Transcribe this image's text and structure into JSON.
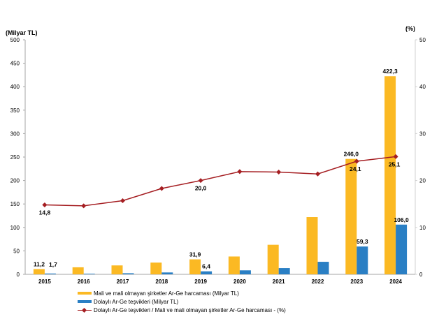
{
  "chart_data": {
    "type": "bar",
    "title": "",
    "categories": [
      "2015",
      "2016",
      "2017",
      "2018",
      "2019",
      "2020",
      "2021",
      "2022",
      "2023",
      "2024"
    ],
    "y_left": {
      "label": "(Milyar TL)",
      "ylim": [
        0,
        500
      ],
      "ticks": [
        "0",
        "50",
        "100",
        "150",
        "200",
        "250",
        "300",
        "350",
        "400",
        "450",
        "500"
      ]
    },
    "y_right": {
      "label": "(%)",
      "ylim": [
        0,
        50
      ],
      "ticks": [
        "0",
        "10",
        "20",
        "30",
        "40",
        "50"
      ]
    },
    "grid": false,
    "legend_position": "bottom",
    "series": [
      {
        "name": "Mali ve mali olmayan şirketler Ar-Ge harcaması (Milyar TL)",
        "type": "bar",
        "axis": "left",
        "color": "#fbb923",
        "values": [
          11.2,
          15.0,
          19.0,
          25.0,
          31.9,
          38.0,
          63.0,
          122.0,
          246.0,
          422.3
        ],
        "labels": [
          "11,2",
          "",
          "",
          "",
          "31,9",
          "",
          "",
          "",
          "246,0",
          "422,3"
        ]
      },
      {
        "name": "Dolaylı Ar-Ge teşvikleri (Milyar TL)",
        "type": "bar",
        "axis": "left",
        "color": "#2a7fc4",
        "values": [
          1.7,
          1.3,
          2.3,
          4.0,
          6.4,
          8.5,
          13.3,
          26.7,
          59.3,
          106.0
        ],
        "labels": [
          "1,7",
          "",
          "",
          "",
          "6,4",
          "",
          "",
          "",
          "59,3",
          "106,0"
        ]
      },
      {
        "name": "Dolaylı Ar-Ge teşvikleri / Mali ve mali olmayan şirketler Ar-Ge harcaması - (%)",
        "type": "line",
        "axis": "right",
        "color": "#a51e22",
        "values": [
          14.8,
          14.6,
          15.7,
          18.3,
          20.0,
          21.9,
          21.8,
          21.4,
          24.1,
          25.1
        ],
        "labels": [
          "14,8",
          "",
          "",
          "",
          "20,0",
          "",
          "",
          "",
          "24,1",
          "25,1"
        ]
      }
    ]
  }
}
